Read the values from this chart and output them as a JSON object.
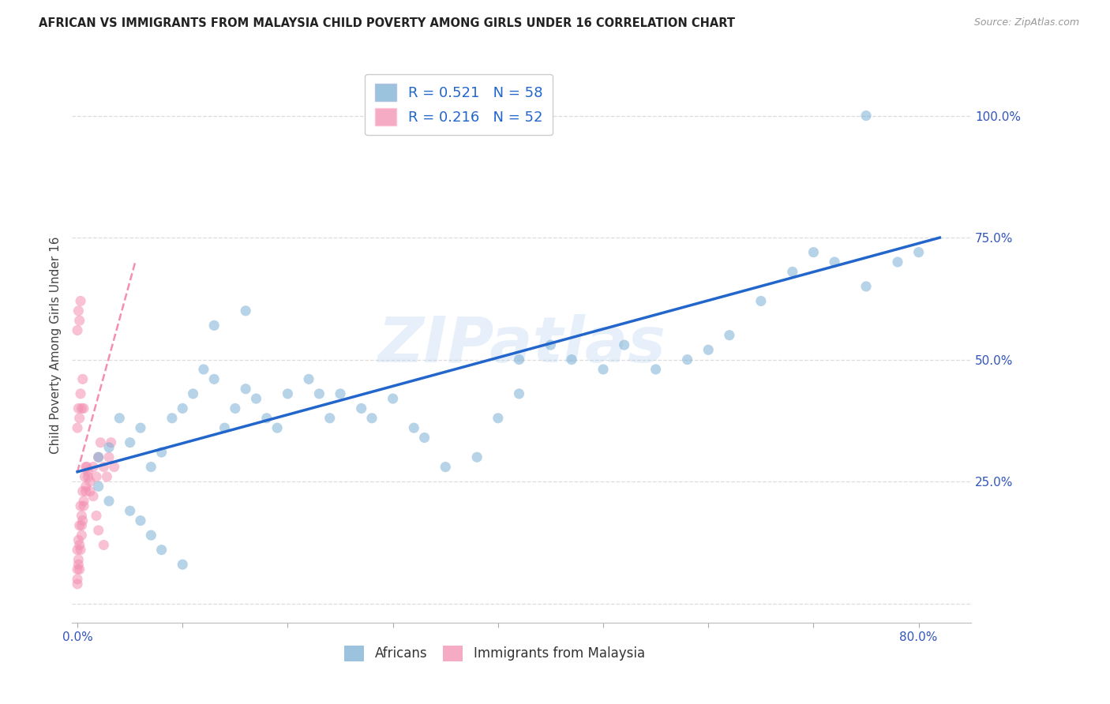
{
  "title": "AFRICAN VS IMMIGRANTS FROM MALAYSIA CHILD POVERTY AMONG GIRLS UNDER 16 CORRELATION CHART",
  "source": "Source: ZipAtlas.com",
  "ylabel": "Child Poverty Among Girls Under 16",
  "ytick_vals": [
    0.0,
    0.25,
    0.5,
    0.75,
    1.0
  ],
  "ytick_labels": [
    "",
    "25.0%",
    "50.0%",
    "75.0%",
    "100.0%"
  ],
  "xtick_vals": [
    0.0,
    0.1,
    0.2,
    0.3,
    0.4,
    0.5,
    0.6,
    0.7,
    0.8
  ],
  "xtick_labels": [
    "0.0%",
    "",
    "",
    "",
    "",
    "",
    "",
    "",
    "80.0%"
  ],
  "xlim": [
    -0.005,
    0.85
  ],
  "ylim": [
    -0.04,
    1.1
  ],
  "blue_color": "#7BAFD4",
  "pink_color": "#F48FB1",
  "blue_line_color": "#2266CC",
  "pink_line_color": "#F06090",
  "tick_color": "#3355BB",
  "grid_color": "#DDDDDD",
  "R_blue": 0.521,
  "N_blue": 58,
  "R_pink": 0.216,
  "N_pink": 52,
  "legend_label_blue": "Africans",
  "legend_label_pink": "Immigrants from Malaysia",
  "blue_scatter_x": [
    0.02,
    0.03,
    0.04,
    0.05,
    0.06,
    0.07,
    0.08,
    0.09,
    0.1,
    0.11,
    0.12,
    0.13,
    0.14,
    0.15,
    0.16,
    0.17,
    0.18,
    0.19,
    0.2,
    0.22,
    0.23,
    0.24,
    0.25,
    0.27,
    0.28,
    0.3,
    0.32,
    0.33,
    0.35,
    0.38,
    0.4,
    0.42,
    0.45,
    0.47,
    0.5,
    0.52,
    0.55,
    0.58,
    0.6,
    0.62,
    0.65,
    0.68,
    0.7,
    0.72,
    0.75,
    0.78,
    0.8,
    0.02,
    0.03,
    0.05,
    0.06,
    0.07,
    0.08,
    0.1,
    0.13,
    0.16,
    0.42,
    0.75
  ],
  "blue_scatter_y": [
    0.3,
    0.32,
    0.38,
    0.33,
    0.36,
    0.28,
    0.31,
    0.38,
    0.4,
    0.43,
    0.48,
    0.46,
    0.36,
    0.4,
    0.44,
    0.42,
    0.38,
    0.36,
    0.43,
    0.46,
    0.43,
    0.38,
    0.43,
    0.4,
    0.38,
    0.42,
    0.36,
    0.34,
    0.28,
    0.3,
    0.38,
    0.43,
    0.53,
    0.5,
    0.48,
    0.53,
    0.48,
    0.5,
    0.52,
    0.55,
    0.62,
    0.68,
    0.72,
    0.7,
    0.65,
    0.7,
    0.72,
    0.24,
    0.21,
    0.19,
    0.17,
    0.14,
    0.11,
    0.08,
    0.57,
    0.6,
    0.5,
    1.0
  ],
  "pink_scatter_x": [
    0.0,
    0.0,
    0.0,
    0.001,
    0.001,
    0.002,
    0.002,
    0.003,
    0.003,
    0.004,
    0.004,
    0.005,
    0.005,
    0.006,
    0.007,
    0.008,
    0.009,
    0.01,
    0.012,
    0.015,
    0.018,
    0.02,
    0.022,
    0.025,
    0.028,
    0.03,
    0.032,
    0.035,
    0.0,
    0.001,
    0.002,
    0.003,
    0.004,
    0.005,
    0.006,
    0.008,
    0.01,
    0.012,
    0.015,
    0.018,
    0.02,
    0.025,
    0.0,
    0.001,
    0.002,
    0.003,
    0.0,
    0.001,
    0.002,
    0.004,
    0.006,
    0.008
  ],
  "pink_scatter_y": [
    0.04,
    0.07,
    0.11,
    0.09,
    0.13,
    0.07,
    0.16,
    0.11,
    0.2,
    0.14,
    0.18,
    0.17,
    0.23,
    0.21,
    0.26,
    0.23,
    0.28,
    0.26,
    0.23,
    0.28,
    0.26,
    0.3,
    0.33,
    0.28,
    0.26,
    0.3,
    0.33,
    0.28,
    0.36,
    0.4,
    0.38,
    0.43,
    0.4,
    0.46,
    0.4,
    0.28,
    0.27,
    0.25,
    0.22,
    0.18,
    0.15,
    0.12,
    0.56,
    0.6,
    0.58,
    0.62,
    0.05,
    0.08,
    0.12,
    0.16,
    0.2,
    0.24
  ],
  "blue_line_x": [
    0.0,
    0.82
  ],
  "blue_line_y": [
    0.27,
    0.75
  ],
  "pink_line_x": [
    0.0,
    0.055
  ],
  "pink_line_y": [
    0.27,
    0.7
  ],
  "watermark": "ZIPatlas",
  "marker_size": 90,
  "marker_alpha": 0.55,
  "fig_width": 14.06,
  "fig_height": 8.92,
  "dpi": 100
}
